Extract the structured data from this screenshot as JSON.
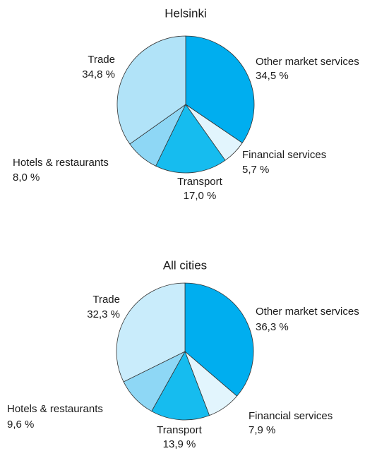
{
  "chart_data": [
    {
      "type": "pie",
      "title": "Helsinki",
      "categories": [
        "Other market services",
        "Financial services",
        "Transport",
        "Hotels & restaurants",
        "Trade"
      ],
      "values": [
        34.5,
        5.7,
        17.0,
        8.0,
        34.8
      ],
      "value_labels": [
        "34,5 %",
        "5,7 %",
        "17,0 %",
        "8,0 %",
        "34,8 %"
      ],
      "colors": [
        "#00aeef",
        "#e2f5fd",
        "#16bcef",
        "#8ed7f5",
        "#b1e3f8"
      ]
    },
    {
      "type": "pie",
      "title": "All cities",
      "categories": [
        "Other market services",
        "Financial services",
        "Transport",
        "Hotels & restaurants",
        "Trade"
      ],
      "values": [
        36.3,
        7.9,
        13.9,
        9.6,
        32.3
      ],
      "value_labels": [
        "36,3 %",
        "7,9 %",
        "13,9 %",
        "9,6 %",
        "32,3 %"
      ],
      "colors": [
        "#00aeef",
        "#e2f5fd",
        "#16bcef",
        "#8ed7f5",
        "#c9ecfb"
      ]
    }
  ]
}
